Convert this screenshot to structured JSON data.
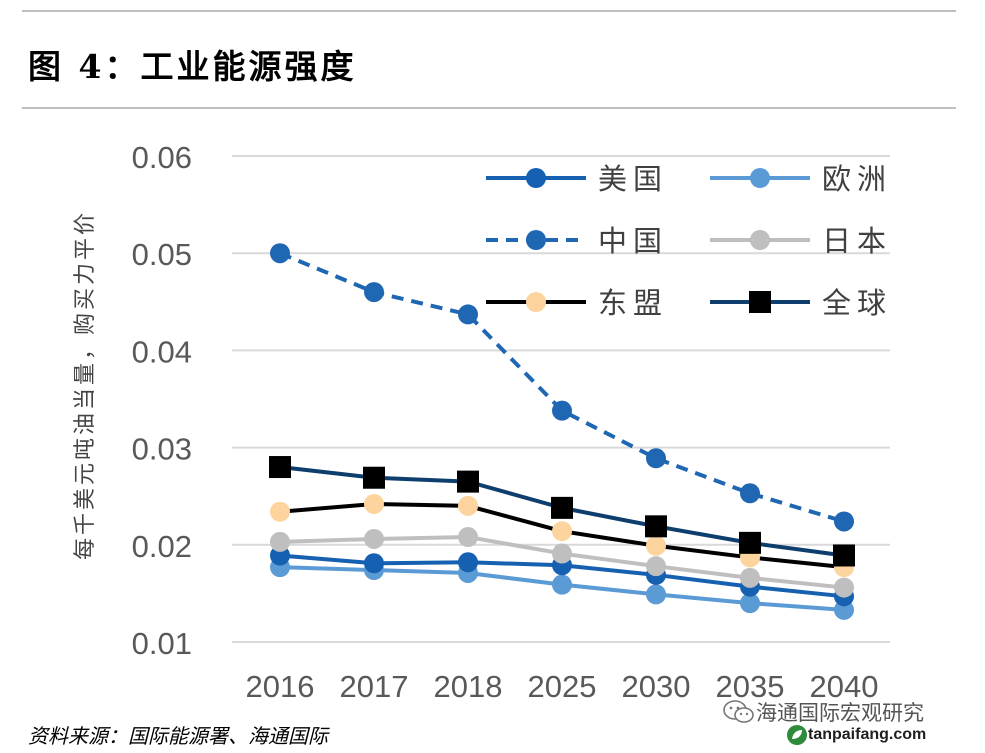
{
  "figure": {
    "title": "图 4：工业能源强度",
    "source": "资料来源：国际能源署、海通国际"
  },
  "watermark": {
    "text": "海通国际宏观研究",
    "site": "tanpaifang.com",
    "icon": "wechat-icon",
    "site_icon": "leaf-logo-icon"
  },
  "chart_data": {
    "type": "line",
    "title": "",
    "xlabel": "",
    "ylabel": "每千美元吨油当量，购买力平价",
    "categories": [
      "2016",
      "2017",
      "2018",
      "2025",
      "2030",
      "2035",
      "2040"
    ],
    "yticks": [
      "0.01",
      "0.02",
      "0.03",
      "0.04",
      "0.05",
      "0.06"
    ],
    "ylim": [
      0.01,
      0.06
    ],
    "grid": true,
    "legend_position": "top-right",
    "series": [
      {
        "name": "美国",
        "color": "#1560b0",
        "style": "solid",
        "marker": "circle",
        "values": [
          0.0189,
          0.0181,
          0.0182,
          0.0179,
          0.0169,
          0.0157,
          0.0147
        ]
      },
      {
        "name": "欧洲",
        "color": "#5b9bd5",
        "style": "solid",
        "marker": "circle",
        "values": [
          0.0177,
          0.0174,
          0.0171,
          0.0159,
          0.0149,
          0.014,
          0.0133
        ]
      },
      {
        "name": "中国",
        "color": "#1f66b3",
        "style": "dashed",
        "marker": "circle",
        "values": [
          0.05,
          0.046,
          0.0437,
          0.0338,
          0.0289,
          0.0253,
          0.0224
        ]
      },
      {
        "name": "日本",
        "color": "#bfbfbf",
        "style": "solid",
        "marker": "circle",
        "values": [
          0.0203,
          0.0206,
          0.0208,
          0.0191,
          0.0178,
          0.0166,
          0.0156
        ]
      },
      {
        "name": "东盟",
        "color": "#000000",
        "style": "solid",
        "marker": "circle",
        "marker_color": "#fdd49d",
        "values": [
          0.0234,
          0.0242,
          0.024,
          0.0214,
          0.0199,
          0.0187,
          0.0177
        ]
      },
      {
        "name": "全球",
        "color": "#0e3e6e",
        "style": "solid",
        "marker": "square",
        "marker_color": "#000000",
        "values": [
          0.028,
          0.0269,
          0.0265,
          0.0238,
          0.0219,
          0.0202,
          0.0189
        ]
      }
    ]
  }
}
